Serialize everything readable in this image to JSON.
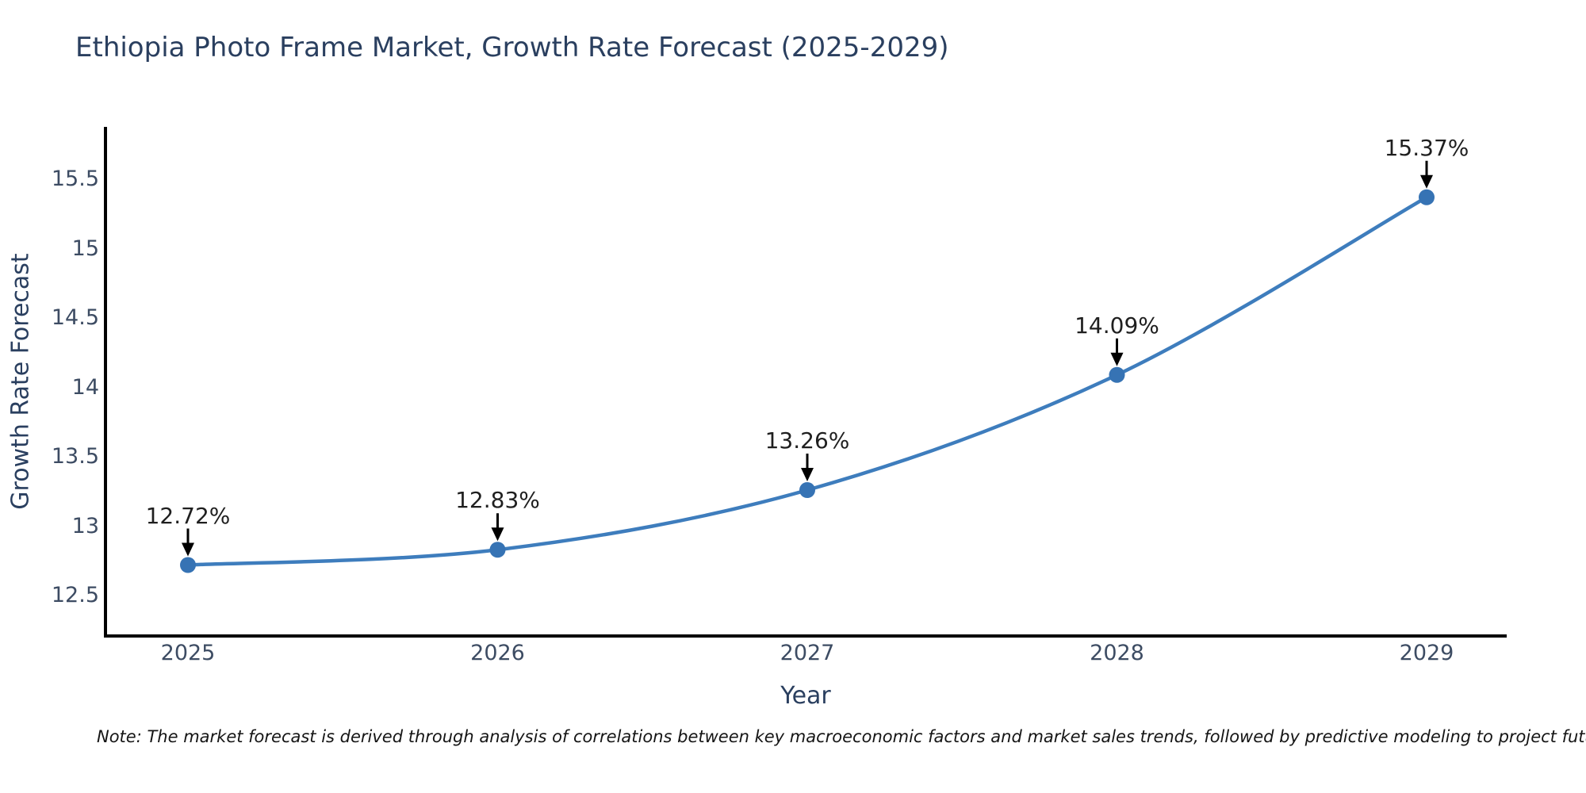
{
  "page": {
    "background": "#ffffff"
  },
  "chart_data": {
    "type": "line",
    "title": "Ethiopia Photo Frame Market, Growth Rate Forecast (2025-2029)",
    "xlabel": "Year",
    "ylabel": "Growth Rate Forecast",
    "categories": [
      2025,
      2026,
      2027,
      2028,
      2029
    ],
    "series": [
      {
        "name": "Growth Rate Forecast",
        "values": [
          12.72,
          12.83,
          13.26,
          14.09,
          15.37
        ]
      }
    ],
    "point_labels": [
      "12.72%",
      "12.83%",
      "13.26%",
      "14.09%",
      "15.37%"
    ],
    "x_tick_labels": [
      "2025",
      "2026",
      "2027",
      "2028",
      "2029"
    ],
    "y_tick_labels": [
      "12.5",
      "13",
      "13.5",
      "14",
      "14.5",
      "15",
      "15.5"
    ],
    "y_tick_values": [
      12.5,
      13,
      13.5,
      14,
      14.5,
      15,
      15.5
    ],
    "ylim": [
      12.21,
      15.87
    ],
    "grid": false,
    "legend_position": "none",
    "line_style": "spline",
    "marker": "circle",
    "colors": {
      "line": "#3e7dbd",
      "marker": "#3673b4",
      "spine": "#000000",
      "arrow": "#000000",
      "title_text": "#2a3f5f",
      "tick_text": "#3d4c63",
      "annotation_text": "#1f1f1f",
      "note_text": "#151515",
      "background": "#ffffff"
    }
  },
  "note": {
    "text": "Note: The market forecast is derived through analysis of correlations between key macroeconomic factors and market sales trends, followed by predictive modeling to project future sal"
  }
}
